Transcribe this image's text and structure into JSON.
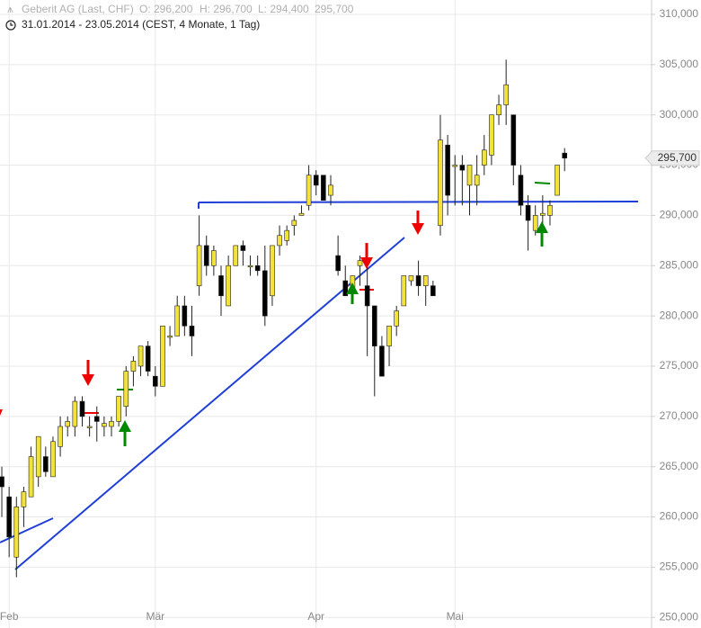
{
  "chart_data": {
    "type": "candlestick",
    "title": "Geberit AG (Last, CHF)",
    "ohlc_labels": [
      "O: 296,200",
      "H: 296,700",
      "L: 294,400",
      "295,700"
    ],
    "subtitle": "31.01.2014 - 23.05.2014 (CEST, 4 Monate, 1 Tag)",
    "last_label": "295,700",
    "up_color": "#f3e23a",
    "down_color": "#000000",
    "xlim": [
      -0.25,
      88.9
    ],
    "xticks": [
      {
        "value": 1,
        "label": "Feb"
      },
      {
        "value": 21,
        "label": "Mär"
      },
      {
        "value": 43,
        "label": "Apr"
      },
      {
        "value": 62,
        "label": "Mai"
      }
    ],
    "ylim": [
      248950,
      311430
    ],
    "yticks": [
      {
        "value": 250000,
        "label": "250,000"
      },
      {
        "value": 255000,
        "label": "255,000"
      },
      {
        "value": 260000,
        "label": "260,000"
      },
      {
        "value": 265000,
        "label": "265,000"
      },
      {
        "value": 270000,
        "label": "270,000"
      },
      {
        "value": 275000,
        "label": "275,000"
      },
      {
        "value": 280000,
        "label": "280,000"
      },
      {
        "value": 285000,
        "label": "285,000"
      },
      {
        "value": 290000,
        "label": "290,000"
      },
      {
        "value": 295000,
        "label": "295,000"
      },
      {
        "value": 300000,
        "label": "300,000"
      },
      {
        "value": 305000,
        "label": "305,000"
      },
      {
        "value": 310000,
        "label": "310,000"
      }
    ],
    "grid": true,
    "open": [
      264000,
      262000,
      256000,
      261000,
      262000,
      264000,
      266000,
      264000,
      267000,
      269000,
      269000,
      271500,
      269000,
      270000,
      269000,
      269000,
      269500,
      271000,
      274500,
      275000,
      277000,
      274000,
      273000,
      278000,
      278000,
      281000,
      279000,
      283000,
      287000,
      285000,
      284000,
      281000,
      285000,
      287000,
      285000,
      285000,
      284500,
      282000,
      287000,
      287500,
      289000,
      290000,
      291000,
      294000,
      294000,
      292000,
      286000,
      283500,
      282500,
      285000,
      283000,
      281000,
      277000,
      277000,
      279000,
      281000,
      283500,
      284000,
      283000,
      283000,
      289000,
      297000,
      295000,
      295000,
      293000,
      293000,
      295000,
      296000,
      300000,
      301000,
      300000,
      294000,
      291000,
      288500,
      290000,
      290000,
      292000,
      296200
    ],
    "high": [
      265000,
      263000,
      262000,
      263000,
      267000,
      268000,
      267000,
      268000,
      270000,
      270000,
      272000,
      272000,
      270000,
      271000,
      270000,
      270000,
      272000,
      275000,
      276000,
      277000,
      277500,
      275000,
      279000,
      279000,
      282000,
      282000,
      281000,
      290000,
      288000,
      287000,
      285000,
      286000,
      287000,
      287500,
      286000,
      286000,
      287000,
      287000,
      289000,
      289000,
      290000,
      291000,
      295000,
      294500,
      294000,
      294000,
      288000,
      285000,
      284000,
      286000,
      285000,
      281000,
      278000,
      279000,
      281000,
      284000,
      284000,
      285500,
      284000,
      283500,
      300000,
      298000,
      296000,
      296000,
      295000,
      296000,
      298000,
      300000,
      302000,
      305500,
      300000,
      295000,
      292000,
      291000,
      292000,
      291500,
      295000,
      296700
    ],
    "low": [
      260000,
      256000,
      254000,
      259000,
      262000,
      263000,
      264000,
      264000,
      266000,
      268000,
      268000,
      269000,
      268000,
      267500,
      268000,
      268000,
      269000,
      270000,
      273000,
      274000,
      274000,
      272000,
      273000,
      277000,
      278000,
      278000,
      276000,
      282000,
      284000,
      284000,
      280000,
      281000,
      285000,
      285000,
      284000,
      284000,
      279000,
      281000,
      286000,
      287000,
      288000,
      290000,
      290500,
      292000,
      292000,
      291000,
      284000,
      282000,
      281500,
      283000,
      276000,
      272000,
      274000,
      275000,
      278000,
      281000,
      283000,
      282000,
      281000,
      282000,
      288000,
      290000,
      291000,
      291000,
      290000,
      291000,
      294000,
      295000,
      299000,
      299000,
      293000,
      290000,
      286500,
      288000,
      289000,
      289000,
      292000,
      294400
    ],
    "close": [
      263000,
      258000,
      261000,
      262500,
      266000,
      268000,
      264500,
      267500,
      269000,
      269500,
      271500,
      270000,
      269000,
      269500,
      269300,
      269500,
      272000,
      274500,
      275500,
      277000,
      274500,
      273000,
      279000,
      278000,
      281000,
      279000,
      278000,
      287000,
      285000,
      286500,
      282000,
      285000,
      287000,
      286500,
      285000,
      284500,
      280000,
      287000,
      288000,
      288500,
      289500,
      290200,
      294000,
      293000,
      291500,
      293000,
      284500,
      282000,
      284000,
      285500,
      281000,
      277000,
      274000,
      279000,
      280500,
      284000,
      284000,
      283000,
      284000,
      282000,
      297500,
      292000,
      295000,
      294500,
      295000,
      294000,
      296500,
      300000,
      301000,
      303000,
      295000,
      291000,
      289500,
      290000,
      290200,
      291000,
      295000,
      295700
    ]
  }
}
